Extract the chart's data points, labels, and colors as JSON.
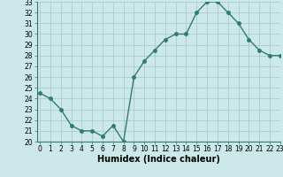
{
  "x": [
    0,
    1,
    2,
    3,
    4,
    5,
    6,
    7,
    8,
    9,
    10,
    11,
    12,
    13,
    14,
    15,
    16,
    17,
    18,
    19,
    20,
    21,
    22,
    23
  ],
  "y": [
    24.5,
    24.0,
    23.0,
    21.5,
    21.0,
    21.0,
    20.5,
    21.5,
    20.0,
    26.0,
    27.5,
    28.5,
    29.5,
    30.0,
    30.0,
    32.0,
    33.0,
    33.0,
    32.0,
    31.0,
    29.5,
    28.5,
    28.0,
    28.0
  ],
  "xlabel": "Humidex (Indice chaleur)",
  "ylim": [
    20,
    33
  ],
  "xlim": [
    -0.3,
    23
  ],
  "yticks": [
    20,
    21,
    22,
    23,
    24,
    25,
    26,
    27,
    28,
    29,
    30,
    31,
    32,
    33
  ],
  "xticks": [
    0,
    1,
    2,
    3,
    4,
    5,
    6,
    7,
    8,
    9,
    10,
    11,
    12,
    13,
    14,
    15,
    16,
    17,
    18,
    19,
    20,
    21,
    22,
    23
  ],
  "line_color": "#2e7d6e",
  "bg_color": "#cce8e8",
  "grid_color": "#aacccc",
  "marker": "o",
  "markersize": 2.5,
  "linewidth": 1.0,
  "tick_fontsize": 5.5,
  "xlabel_fontsize": 7.0
}
